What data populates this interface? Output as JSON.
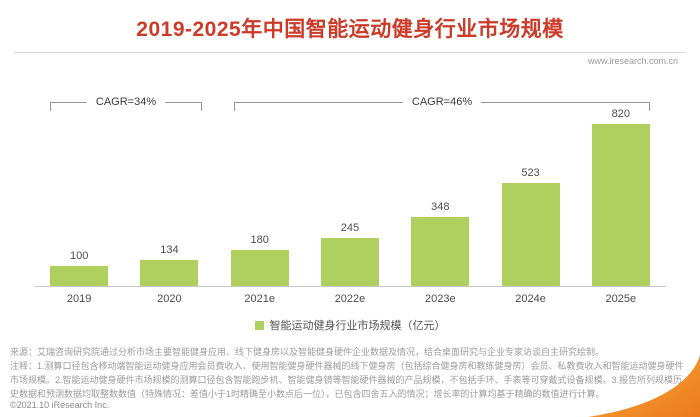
{
  "header": {
    "title": "2019-2025年中国智能运动健身行业市场规模",
    "website": "www.iresearch.com.cn"
  },
  "chart_data": {
    "type": "bar",
    "title": "2019-2025年中国智能运动健身行业市场规模",
    "categories": [
      "2019",
      "2020",
      "2021e",
      "2022e",
      "2023e",
      "2024e",
      "2025e"
    ],
    "values": [
      100,
      134,
      180,
      245,
      348,
      523,
      820
    ],
    "unit": "亿元",
    "legend": "智能运动健身行业市场规模（亿元）",
    "legend_position": "bottom",
    "ylim": [
      0,
      900
    ],
    "grid": false,
    "bar_color": "#afd05f",
    "annotations": [
      {
        "label": "CAGR=34%",
        "from": "2019",
        "to": "2020"
      },
      {
        "label": "CAGR=46%",
        "from": "2021e",
        "to": "2025e"
      }
    ]
  },
  "footer": {
    "source": "来源：艾瑞咨询研究院通过分析市场主要智能健身应用、线下健身房以及智能健身硬件企业数据及情况，结合桌面研究与企业专家访谈自主研究绘制。",
    "notes": "注释：1.测算口径包含移动端智能运动健身应用会员费收入、使用智能健身硬件器械的线下健身房（包括综合健身房和教练健身房）会员、私教费收入和智能运动健身硬件市场规模。2.智能运动健身硬件市场规模的测算口径包含智能跑步机、智能健身镜等智能硬件器械的产品规模，不包括手环、手表等可穿戴式设备规模。3.报告所列规模历史数据和预测数据均取整数数值（特殊情况：差值小于1时精确至小数点后一位），已包含四舍五入的情况；增长率的计算均基于精确的数值进行计算。",
    "copyright": "©2021.10 iResearch Inc.",
    "accent_color": "#f08519"
  }
}
